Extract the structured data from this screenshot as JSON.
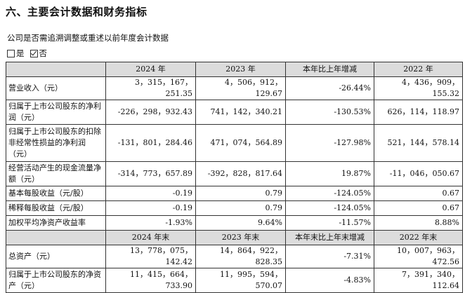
{
  "section_title": "六、主要会计数据和财务指标",
  "question": "公司是否需追溯调整或重述以前年度会计数据",
  "options": {
    "yes": "是",
    "no": "否",
    "selected": "no"
  },
  "header1": [
    "",
    "2024 年",
    "2023 年",
    "本年比上年增减",
    "2022 年"
  ],
  "rows1": [
    {
      "label": "营业收入（元）",
      "values": [
        "3，315，167，251.35",
        "4，506，912，129.67",
        "-26.44%",
        "4，436，909，155.32"
      ]
    },
    {
      "label": "归属于上市公司股东的净利润（元）",
      "values": [
        "-226，298，932.43",
        "741，142，340.21",
        "-130.53%",
        "626，114，118.97"
      ]
    },
    {
      "label": "归属于上市公司股东的扣除非经常性损益的净利润（元）",
      "values": [
        "-131，801，284.46",
        "471，074，564.89",
        "-127.98%",
        "521，144，578.14"
      ]
    },
    {
      "label": "经营活动产生的现金流量净额（元）",
      "values": [
        "-314，773，657.89",
        "-392，828，817.64",
        "19.87%",
        "-11，046，050.67"
      ]
    },
    {
      "label": "基本每股收益（元/股）",
      "values": [
        "-0.19",
        "0.79",
        "-124.05%",
        "0.67"
      ]
    },
    {
      "label": "稀释每股收益（元/股）",
      "values": [
        "-0.19",
        "0.79",
        "-124.05%",
        "0.67"
      ]
    },
    {
      "label": "加权平均净资产收益率",
      "values": [
        "-1.93%",
        "9.64%",
        "-11.57%",
        "8.88%"
      ]
    }
  ],
  "header2": [
    "",
    "2024 年末",
    "2023 年末",
    "本年末比上年末增减",
    "2022 年末"
  ],
  "rows2": [
    {
      "label": "总资产（元）",
      "values": [
        "13，778，075，142.42",
        "14，864，922，828.35",
        "-7.31%",
        "10，007，963，472.56"
      ]
    },
    {
      "label": "归属于上市公司股东的净资产（元）",
      "values": [
        "11，415，664，733.90",
        "11，995，594，570.07",
        "-4.83%",
        "7，391，340，112.64"
      ]
    }
  ]
}
